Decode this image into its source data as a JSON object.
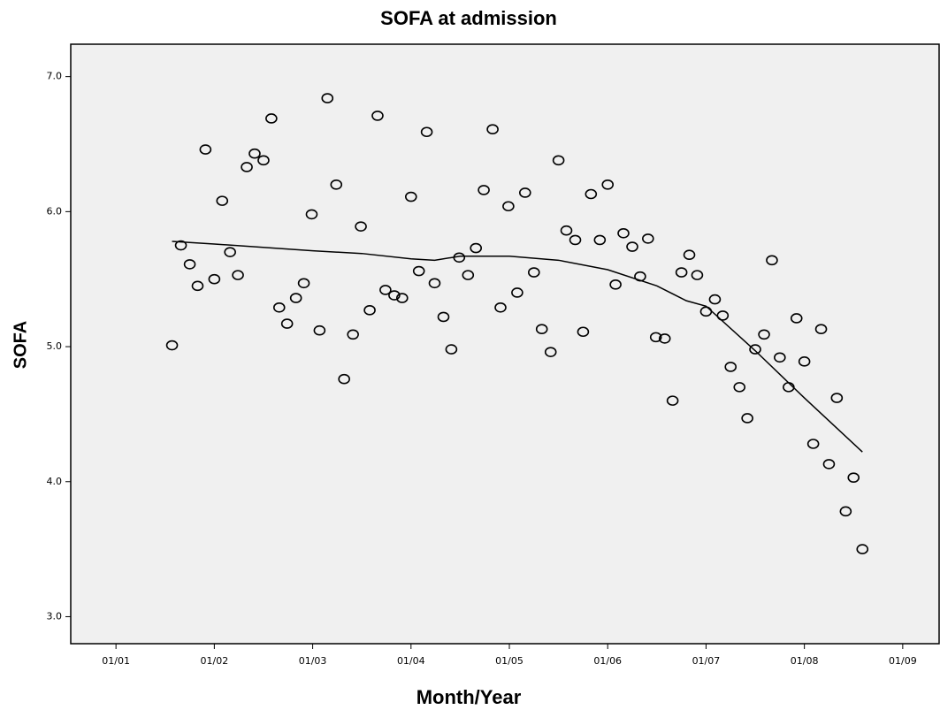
{
  "chart_data": {
    "type": "scatter",
    "title": "SOFA at admission",
    "x_label": "Month/Year",
    "y_label": "SOFA",
    "xlim": [
      0.54,
      9.37
    ],
    "ylim": [
      2.8,
      7.24
    ],
    "xticks": [
      {
        "value": 1,
        "label": "01/01"
      },
      {
        "value": 2,
        "label": "01/02"
      },
      {
        "value": 3,
        "label": "01/03"
      },
      {
        "value": 4,
        "label": "01/04"
      },
      {
        "value": 5,
        "label": "01/05"
      },
      {
        "value": 6,
        "label": "01/06"
      },
      {
        "value": 7,
        "label": "01/07"
      },
      {
        "value": 8,
        "label": "01/08"
      },
      {
        "value": 9,
        "label": "01/09"
      }
    ],
    "yticks": [
      {
        "value": 3,
        "label": "3.0"
      },
      {
        "value": 4,
        "label": "4.0"
      },
      {
        "value": 5,
        "label": "5.0"
      },
      {
        "value": 6,
        "label": "6.0"
      },
      {
        "value": 7,
        "label": "7.0"
      }
    ],
    "color": "#000000",
    "background": "#f0f0f0",
    "x": [
      1.57,
      1.66,
      1.75,
      1.83,
      1.91,
      2.0,
      2.08,
      2.16,
      2.24,
      2.33,
      2.41,
      2.5,
      2.58,
      2.66,
      2.74,
      2.83,
      2.91,
      2.99,
      3.07,
      3.15,
      3.24,
      3.32,
      3.41,
      3.49,
      3.58,
      3.66,
      3.74,
      3.83,
      3.91,
      4.0,
      4.08,
      4.16,
      4.24,
      4.33,
      4.41,
      4.49,
      4.58,
      4.66,
      4.74,
      4.83,
      4.91,
      4.99,
      5.08,
      5.16,
      5.25,
      5.33,
      5.42,
      5.5,
      5.58,
      5.67,
      5.75,
      5.83,
      5.92,
      6.0,
      6.08,
      6.16,
      6.25,
      6.33,
      6.41,
      6.49,
      6.58,
      6.66,
      6.75,
      6.83,
      6.91,
      7.0,
      7.09,
      7.17,
      7.25,
      7.34,
      7.42,
      7.5,
      7.59,
      7.67,
      7.75,
      7.84,
      7.92,
      8.0,
      8.09,
      8.17,
      8.25,
      8.33,
      8.42,
      8.5,
      8.59
    ],
    "values": [
      5.01,
      5.75,
      5.61,
      5.45,
      6.46,
      5.5,
      6.08,
      5.7,
      5.53,
      6.33,
      6.43,
      6.38,
      6.69,
      5.29,
      5.17,
      5.36,
      5.47,
      5.98,
      5.12,
      6.84,
      6.2,
      4.76,
      5.09,
      5.89,
      5.27,
      6.71,
      5.42,
      5.38,
      5.36,
      6.11,
      5.56,
      6.59,
      5.47,
      5.22,
      4.98,
      5.66,
      5.53,
      5.73,
      6.16,
      6.61,
      5.29,
      6.04,
      5.4,
      6.14,
      5.55,
      5.13,
      4.96,
      6.38,
      5.86,
      5.79,
      5.11,
      6.13,
      5.79,
      6.2,
      5.46,
      5.84,
      5.74,
      5.52,
      5.8,
      5.07,
      5.06,
      4.6,
      5.55,
      5.68,
      5.53,
      5.26,
      5.35,
      5.23,
      4.85,
      4.7,
      4.47,
      4.98,
      5.09,
      5.64,
      4.92,
      4.7,
      5.21,
      4.89,
      4.28,
      5.13,
      4.13,
      4.62,
      3.78,
      4.03,
      3.5
    ],
    "fit": {
      "x": [
        1.57,
        2.0,
        3.0,
        3.5,
        4.0,
        4.24,
        4.5,
        5.0,
        5.5,
        6.0,
        6.5,
        6.8,
        7.0,
        7.5,
        8.0,
        8.59
      ],
      "values": [
        5.78,
        5.76,
        5.71,
        5.69,
        5.65,
        5.64,
        5.67,
        5.67,
        5.64,
        5.57,
        5.45,
        5.34,
        5.3,
        4.97,
        4.62,
        4.22
      ]
    }
  }
}
